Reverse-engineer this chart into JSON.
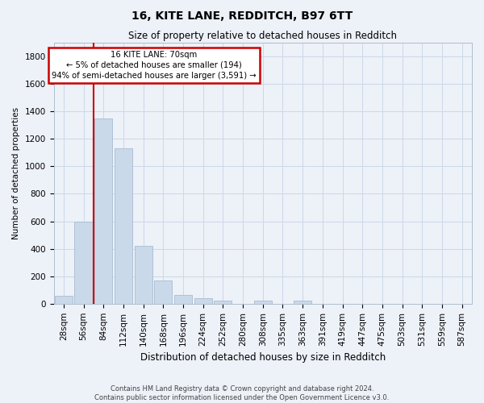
{
  "title1": "16, KITE LANE, REDDITCH, B97 6TT",
  "title2": "Size of property relative to detached houses in Redditch",
  "xlabel": "Distribution of detached houses by size in Redditch",
  "ylabel": "Number of detached properties",
  "footnote": "Contains HM Land Registry data © Crown copyright and database right 2024.\nContains public sector information licensed under the Open Government Licence v3.0.",
  "bar_labels": [
    "28sqm",
    "56sqm",
    "84sqm",
    "112sqm",
    "140sqm",
    "168sqm",
    "196sqm",
    "224sqm",
    "252sqm",
    "280sqm",
    "308sqm",
    "335sqm",
    "363sqm",
    "391sqm",
    "419sqm",
    "447sqm",
    "475sqm",
    "503sqm",
    "531sqm",
    "559sqm",
    "587sqm"
  ],
  "bar_values": [
    60,
    600,
    1350,
    1130,
    420,
    170,
    65,
    40,
    20,
    0,
    20,
    0,
    20,
    0,
    0,
    0,
    0,
    0,
    0,
    0,
    0
  ],
  "bar_color": "#c9d9ea",
  "bar_edge_color": "#a8bcd0",
  "grid_color": "#cdd8e8",
  "background_color": "#edf1f8",
  "vline_color": "#cc0000",
  "vline_x": 1.5,
  "annotation_title": "16 KITE LANE: 70sqm",
  "annotation_line1": "← 5% of detached houses are smaller (194)",
  "annotation_line2": "94% of semi-detached houses are larger (3,591) →",
  "annotation_box_facecolor": "#ffffff",
  "annotation_box_edgecolor": "#cc0000",
  "ylim": [
    0,
    1900
  ],
  "yticks": [
    0,
    200,
    400,
    600,
    800,
    1000,
    1200,
    1400,
    1600,
    1800
  ],
  "title1_fontsize": 10,
  "title2_fontsize": 8.5,
  "xlabel_fontsize": 8.5,
  "ylabel_fontsize": 7.5,
  "tick_fontsize": 7.5,
  "footnote_fontsize": 6.0
}
